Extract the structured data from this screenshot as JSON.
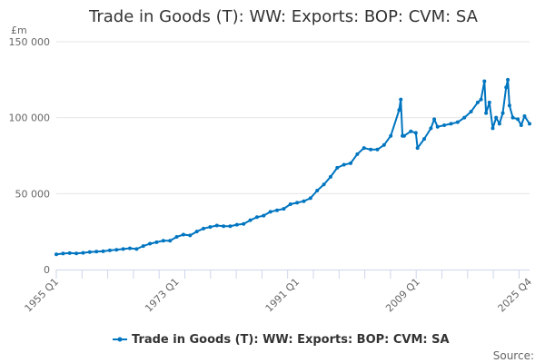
{
  "chart_data": {
    "type": "line",
    "title": "Trade in Goods (T): WW: Exports: BOP: CVM: SA",
    "ylabel": "£m",
    "xlabel": "",
    "ylim": [
      0,
      150000
    ],
    "yticks": [
      0,
      50000,
      100000,
      150000
    ],
    "ytick_labels": [
      "0",
      "50 000",
      "100 000",
      "150 000"
    ],
    "xlim": [
      1955,
      2025.75
    ],
    "xtick_labels": [
      {
        "x": 1955,
        "label": "1955 Q1"
      },
      {
        "x": 1973,
        "label": "1973 Q1"
      },
      {
        "x": 1991,
        "label": "1991 Q1"
      },
      {
        "x": 2009,
        "label": "2009 Q1"
      },
      {
        "x": 2025.75,
        "label": "2025 Q4"
      }
    ],
    "grid": true,
    "legend_position": "bottom",
    "source_label": "Source:",
    "color": "#0075c0",
    "series": [
      {
        "name": "Trade in Goods (T): WW: Exports: BOP: CVM: SA",
        "x": [
          1955,
          1956,
          1957,
          1958,
          1959,
          1960,
          1961,
          1962,
          1963,
          1964,
          1965,
          1966,
          1967,
          1968,
          1969,
          1970,
          1971,
          1972,
          1973,
          1974,
          1975,
          1976,
          1977,
          1978,
          1979,
          1980,
          1981,
          1982,
          1983,
          1984,
          1985,
          1986,
          1987,
          1988,
          1989,
          1990,
          1991,
          1992,
          1993,
          1994,
          1995,
          1996,
          1997,
          1998,
          1999,
          2000,
          2001,
          2002,
          2003,
          2004,
          2005,
          2006.25,
          2006.5,
          2006.75,
          2007,
          2008,
          2008.75,
          2009,
          2010,
          2011,
          2011.5,
          2012,
          2013,
          2014,
          2015,
          2016,
          2017,
          2018,
          2018.5,
          2019,
          2019.25,
          2019.75,
          2020.25,
          2020.75,
          2021.25,
          2021.75,
          2022.25,
          2022.5,
          2022.75,
          2023.25,
          2024,
          2024.5,
          2025,
          2025.75
        ],
        "values": [
          10000,
          10500,
          10800,
          10600,
          11000,
          11500,
          11800,
          12000,
          12600,
          13000,
          13500,
          14000,
          13500,
          15500,
          17000,
          18000,
          19000,
          19000,
          21500,
          23000,
          22500,
          25000,
          27000,
          28000,
          29000,
          28500,
          28500,
          29500,
          30000,
          32500,
          34500,
          35500,
          38000,
          39000,
          40000,
          43000,
          44000,
          45000,
          47000,
          52000,
          56000,
          61000,
          67000,
          69000,
          70000,
          76000,
          80000,
          79000,
          79000,
          82000,
          88000,
          105000,
          112000,
          88000,
          88000,
          91000,
          90000,
          80000,
          86000,
          93000,
          99000,
          94000,
          95000,
          96000,
          97000,
          100000,
          104000,
          110000,
          112000,
          124000,
          103000,
          110000,
          93000,
          100000,
          96000,
          103000,
          120000,
          125000,
          108000,
          100000,
          99000,
          95000,
          101000,
          96000
        ]
      }
    ]
  }
}
